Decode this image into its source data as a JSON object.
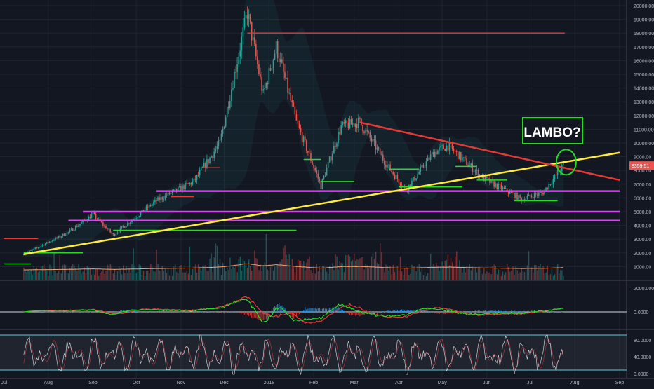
{
  "chart_data": {
    "type": "candlestick",
    "instrument": "BTC/USD",
    "price_axis": {
      "min": 0,
      "max": 20000,
      "step": 1000,
      "tick_labels": [
        "1000.00",
        "2000.00",
        "3000.00",
        "4000.00",
        "5000.00",
        "6000.00",
        "7000.00",
        "8000.00",
        "9000.00",
        "10000.00",
        "11000.00",
        "12000.00",
        "13000.00",
        "14000.00",
        "15000.00",
        "16000.00",
        "17000.00",
        "18000.00",
        "19000.00",
        "20000.00"
      ]
    },
    "last_price_label": "8359.51",
    "time_axis": {
      "labels": [
        "Jul",
        "Aug",
        "Sep",
        "Oct",
        "Nov",
        "Dec",
        "2018",
        "Feb",
        "Mar",
        "Apr",
        "May",
        "Jun",
        "Jul",
        "Aug",
        "Sep"
      ],
      "start": "2017-07-01",
      "end": "2018-09-01"
    },
    "price_key_points": [
      {
        "date": "2017-07-15",
        "price": 1900
      },
      {
        "date": "2017-08-15",
        "price": 3500
      },
      {
        "date": "2017-09-01",
        "price": 4800
      },
      {
        "date": "2017-09-15",
        "price": 3300
      },
      {
        "date": "2017-10-15",
        "price": 5800
      },
      {
        "date": "2017-11-10",
        "price": 7200
      },
      {
        "date": "2017-11-28",
        "price": 10000
      },
      {
        "date": "2017-12-17",
        "price": 19500
      },
      {
        "date": "2017-12-28",
        "price": 13500
      },
      {
        "date": "2018-01-06",
        "price": 17000
      },
      {
        "date": "2018-01-20",
        "price": 11500
      },
      {
        "date": "2018-02-06",
        "price": 6900
      },
      {
        "date": "2018-02-20",
        "price": 11200
      },
      {
        "date": "2018-03-05",
        "price": 11500
      },
      {
        "date": "2018-03-25",
        "price": 8200
      },
      {
        "date": "2018-04-06",
        "price": 6600
      },
      {
        "date": "2018-04-25",
        "price": 9300
      },
      {
        "date": "2018-05-05",
        "price": 9800
      },
      {
        "date": "2018-05-30",
        "price": 7400
      },
      {
        "date": "2018-06-25",
        "price": 5900
      },
      {
        "date": "2018-07-10",
        "price": 6400
      },
      {
        "date": "2018-07-24",
        "price": 8359
      }
    ],
    "horizontal_lines": [
      {
        "price": 18000,
        "from": "2017-12-17",
        "to": "2018-07-25",
        "color": "#e53935"
      },
      {
        "price": 6500,
        "from": "2017-10-15",
        "to": "2018-09-01",
        "color": "#e040fb"
      },
      {
        "price": 5000,
        "from": "2017-08-25",
        "to": "2018-09-01",
        "color": "#e040fb"
      },
      {
        "price": 4350,
        "from": "2017-08-15",
        "to": "2018-09-01",
        "color": "#e040fb"
      }
    ],
    "trend_lines": [
      {
        "from": {
          "date": "2017-07-15",
          "price": 1900
        },
        "to": {
          "date": "2018-09-01",
          "price": 9300
        },
        "color": "#ffeb3b"
      },
      {
        "from": {
          "date": "2018-03-05",
          "price": 11500
        },
        "to": {
          "date": "2018-09-01",
          "price": 7300
        },
        "color": "#e53935"
      }
    ],
    "annotation": {
      "text": "LAMBO?",
      "color": "#22dd22",
      "target": {
        "date": "2018-07-25",
        "price": 8500
      }
    },
    "macd_axis_labels": [
      "2000.0000",
      "0.0000"
    ],
    "stoch_axis_labels": [
      "80.0000",
      "40.0000",
      "0.0000"
    ]
  }
}
